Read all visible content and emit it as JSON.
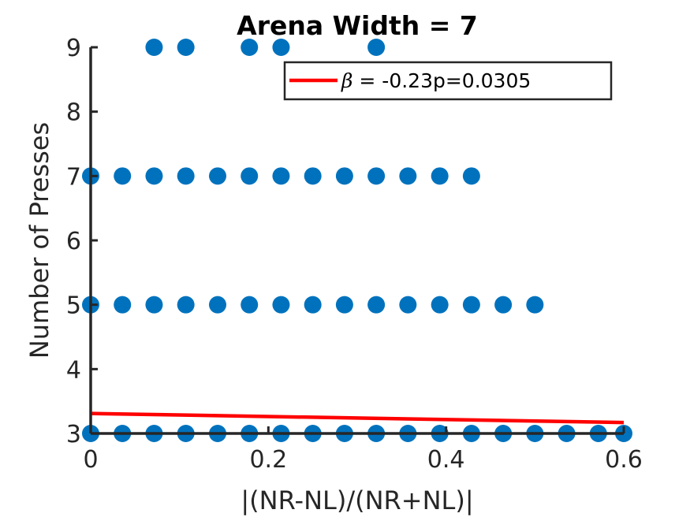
{
  "chart_data": {
    "type": "scatter",
    "title": "Arena Width =  7",
    "xlabel": "|(NR-NL)/(NR+NL)|",
    "ylabel": "Number of Presses",
    "xlim": [
      0,
      0.6
    ],
    "ylim": [
      3,
      9
    ],
    "xticks": [
      0,
      0.2,
      0.4,
      0.6
    ],
    "xtick_labels": [
      "0",
      "0.2",
      "0.4",
      "0.6"
    ],
    "yticks": [
      3,
      4,
      5,
      6,
      7,
      8,
      9
    ],
    "ytick_labels": [
      "3",
      "4",
      "5",
      "6",
      "7",
      "8",
      "9"
    ],
    "grid": false,
    "legend_position": "top-right",
    "series": [
      {
        "type": "scatter",
        "color": "#0072BD",
        "points": [
          [
            0.0,
            3
          ],
          [
            0.0357,
            3
          ],
          [
            0.0714,
            3
          ],
          [
            0.1071,
            3
          ],
          [
            0.1429,
            3
          ],
          [
            0.1786,
            3
          ],
          [
            0.2143,
            3
          ],
          [
            0.25,
            3
          ],
          [
            0.2857,
            3
          ],
          [
            0.3214,
            3
          ],
          [
            0.3571,
            3
          ],
          [
            0.3929,
            3
          ],
          [
            0.4286,
            3
          ],
          [
            0.4643,
            3
          ],
          [
            0.5,
            3
          ],
          [
            0.5357,
            3
          ],
          [
            0.5714,
            3
          ],
          [
            0.6,
            3
          ],
          [
            0.0,
            5
          ],
          [
            0.0357,
            5
          ],
          [
            0.0714,
            5
          ],
          [
            0.1071,
            5
          ],
          [
            0.1429,
            5
          ],
          [
            0.1786,
            5
          ],
          [
            0.2143,
            5
          ],
          [
            0.25,
            5
          ],
          [
            0.2857,
            5
          ],
          [
            0.3214,
            5
          ],
          [
            0.3571,
            5
          ],
          [
            0.3929,
            5
          ],
          [
            0.4286,
            5
          ],
          [
            0.4643,
            5
          ],
          [
            0.5,
            5
          ],
          [
            0.0,
            7
          ],
          [
            0.0357,
            7
          ],
          [
            0.0714,
            7
          ],
          [
            0.1071,
            7
          ],
          [
            0.1429,
            7
          ],
          [
            0.1786,
            7
          ],
          [
            0.2143,
            7
          ],
          [
            0.25,
            7
          ],
          [
            0.2857,
            7
          ],
          [
            0.3214,
            7
          ],
          [
            0.3571,
            7
          ],
          [
            0.3929,
            7
          ],
          [
            0.4286,
            7
          ],
          [
            0.0714,
            9
          ],
          [
            0.1071,
            9
          ],
          [
            0.1786,
            9
          ],
          [
            0.2143,
            9
          ],
          [
            0.3214,
            9
          ]
        ]
      },
      {
        "type": "line",
        "name": "β =  -0.23p=0.0305",
        "color": "#FF0000",
        "points": [
          [
            0.0,
            3.31
          ],
          [
            0.6,
            3.17
          ]
        ]
      }
    ]
  }
}
